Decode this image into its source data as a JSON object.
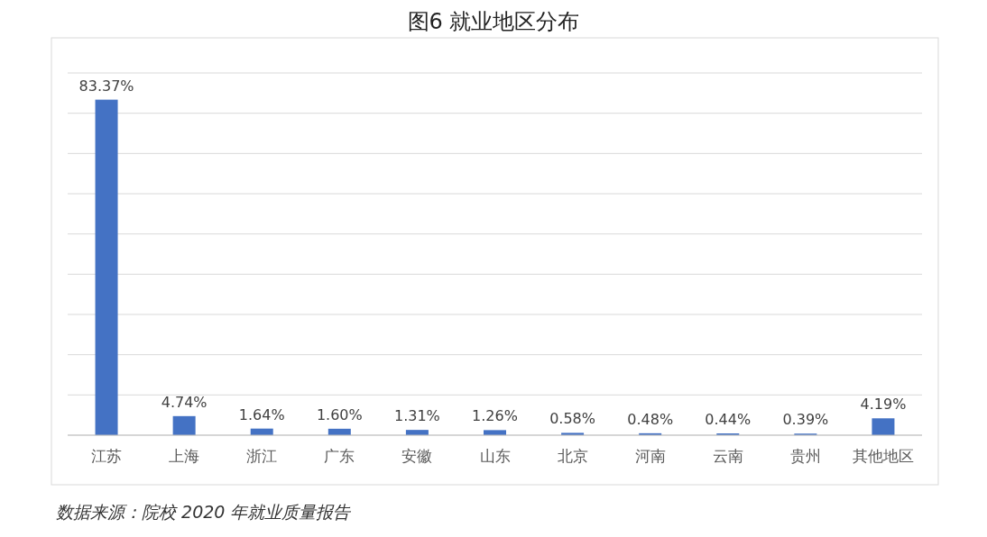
{
  "chart_data": {
    "type": "bar",
    "title": "图6  就业地区分布",
    "categories": [
      "江苏",
      "上海",
      "浙江",
      "广东",
      "安徽",
      "山东",
      "北京",
      "河南",
      "云南",
      "贵州",
      "其他地区"
    ],
    "values": [
      83.37,
      4.74,
      1.64,
      1.6,
      1.31,
      1.26,
      0.58,
      0.48,
      0.44,
      0.39,
      4.19
    ],
    "value_labels": [
      "83.37%",
      "4.74%",
      "1.64%",
      "1.60%",
      "1.31%",
      "1.26%",
      "0.58%",
      "0.48%",
      "0.44%",
      "0.39%",
      "4.19%"
    ],
    "color": "#4472c4",
    "ylim": [
      0,
      90
    ],
    "yticks": [
      {
        "value": 0,
        "label": null
      },
      {
        "value": 10,
        "label": null
      },
      {
        "value": 20,
        "label": null
      },
      {
        "value": 30,
        "label": null
      },
      {
        "value": 40,
        "label": null
      },
      {
        "value": 50,
        "label": null
      },
      {
        "value": 60,
        "label": null
      },
      {
        "value": 70,
        "label": null
      },
      {
        "value": 80,
        "label": null
      },
      {
        "value": 90,
        "label": null
      }
    ],
    "grid": "y",
    "annotations": [
      "数据来源：院校 2020 年就业质量报告"
    ]
  }
}
